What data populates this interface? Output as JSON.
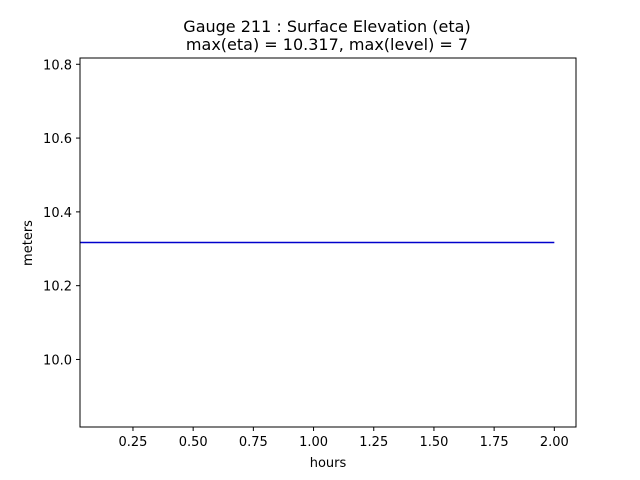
{
  "chart_data": {
    "type": "line",
    "title_lines": [
      "Gauge 211 : Surface Elevation (eta)",
      "max(eta) =  10.317,    max(level) = 7"
    ],
    "xlabel": "hours",
    "ylabel": "meters",
    "xlim": [
      0.03,
      2.09
    ],
    "ylim": [
      9.817,
      10.817
    ],
    "x_ticks": [
      0.25,
      0.5,
      0.75,
      1.0,
      1.25,
      1.5,
      1.75,
      2.0
    ],
    "x_tick_labels": [
      "0.25",
      "0.50",
      "0.75",
      "1.00",
      "1.25",
      "1.50",
      "1.75",
      "2.00"
    ],
    "y_ticks": [
      10.0,
      10.2,
      10.4,
      10.6,
      10.8
    ],
    "y_tick_labels": [
      "10.0",
      "10.2",
      "10.4",
      "10.6",
      "10.8"
    ],
    "grid": false,
    "series": [
      {
        "color": "#0000cc",
        "x": [
          0.0,
          2.0
        ],
        "y": [
          10.317,
          10.317
        ]
      }
    ]
  }
}
